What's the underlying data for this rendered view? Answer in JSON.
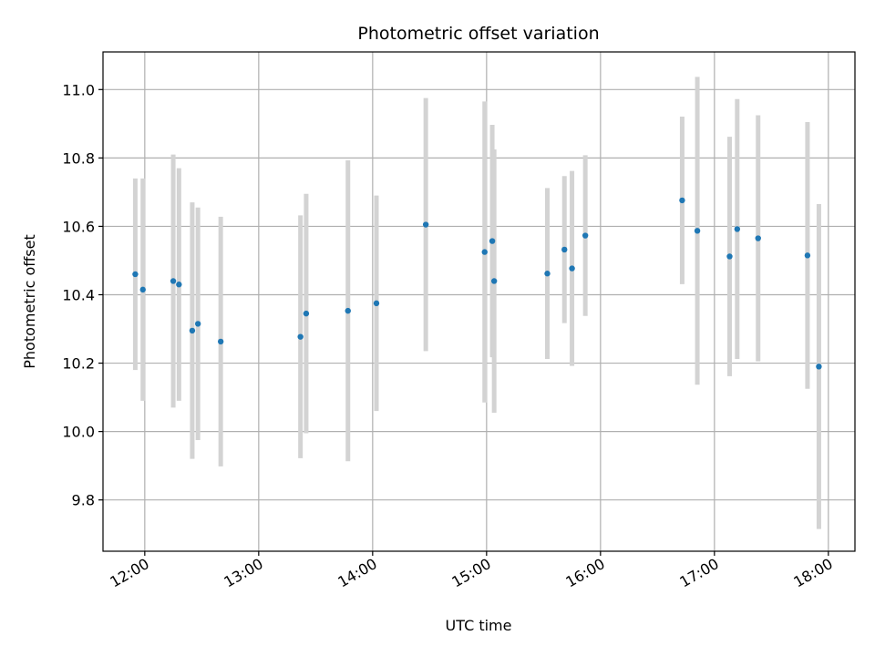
{
  "chart_data": {
    "type": "scatter",
    "title": "Photometric offset variation",
    "xlabel": "UTC time",
    "ylabel": "Photometric offset",
    "x_ticks": [
      "12:00",
      "13:00",
      "14:00",
      "15:00",
      "16:00",
      "17:00",
      "18:00"
    ],
    "y_ticks": [
      "9.8",
      "10.0",
      "10.2",
      "10.4",
      "10.6",
      "10.8",
      "11.0"
    ],
    "xlim": [
      "11:38",
      "18:14"
    ],
    "ylim": [
      9.65,
      11.11
    ],
    "grid": true,
    "colors": {
      "points": "#1f77b4",
      "errorbars": "#d3d3d3",
      "grid": "#b0b0b0",
      "axes": "#000000"
    },
    "points": [
      {
        "time": "11:55",
        "offset": 10.46,
        "yerr": 0.28
      },
      {
        "time": "11:59",
        "offset": 10.415,
        "yerr": 0.325
      },
      {
        "time": "12:15",
        "offset": 10.44,
        "yerr": 0.37
      },
      {
        "time": "12:18",
        "offset": 10.43,
        "yerr": 0.34
      },
      {
        "time": "12:25",
        "offset": 10.295,
        "yerr": 0.375
      },
      {
        "time": "12:28",
        "offset": 10.315,
        "yerr": 0.34
      },
      {
        "time": "12:40",
        "offset": 10.263,
        "yerr": 0.365
      },
      {
        "time": "13:22",
        "offset": 10.277,
        "yerr": 0.355
      },
      {
        "time": "13:25",
        "offset": 10.345,
        "yerr": 0.35
      },
      {
        "time": "13:47",
        "offset": 10.353,
        "yerr": 0.44
      },
      {
        "time": "14:02",
        "offset": 10.375,
        "yerr": 0.315
      },
      {
        "time": "14:28",
        "offset": 10.605,
        "yerr": 0.37
      },
      {
        "time": "14:59",
        "offset": 10.525,
        "yerr": 0.44
      },
      {
        "time": "15:03",
        "offset": 10.557,
        "yerr": 0.34
      },
      {
        "time": "15:04",
        "offset": 10.44,
        "yerr": 0.385
      },
      {
        "time": "15:32",
        "offset": 10.462,
        "yerr": 0.25
      },
      {
        "time": "15:41",
        "offset": 10.532,
        "yerr": 0.215
      },
      {
        "time": "15:45",
        "offset": 10.477,
        "yerr": 0.285
      },
      {
        "time": "15:52",
        "offset": 10.573,
        "yerr": 0.235
      },
      {
        "time": "16:43",
        "offset": 10.676,
        "yerr": 0.245
      },
      {
        "time": "16:51",
        "offset": 10.587,
        "yerr": 0.45
      },
      {
        "time": "17:08",
        "offset": 10.512,
        "yerr": 0.35
      },
      {
        "time": "17:12",
        "offset": 10.592,
        "yerr": 0.38
      },
      {
        "time": "17:23",
        "offset": 10.565,
        "yerr": 0.36
      },
      {
        "time": "17:49",
        "offset": 10.515,
        "yerr": 0.39
      },
      {
        "time": "17:55",
        "offset": 10.19,
        "yerr": 0.475
      }
    ]
  }
}
